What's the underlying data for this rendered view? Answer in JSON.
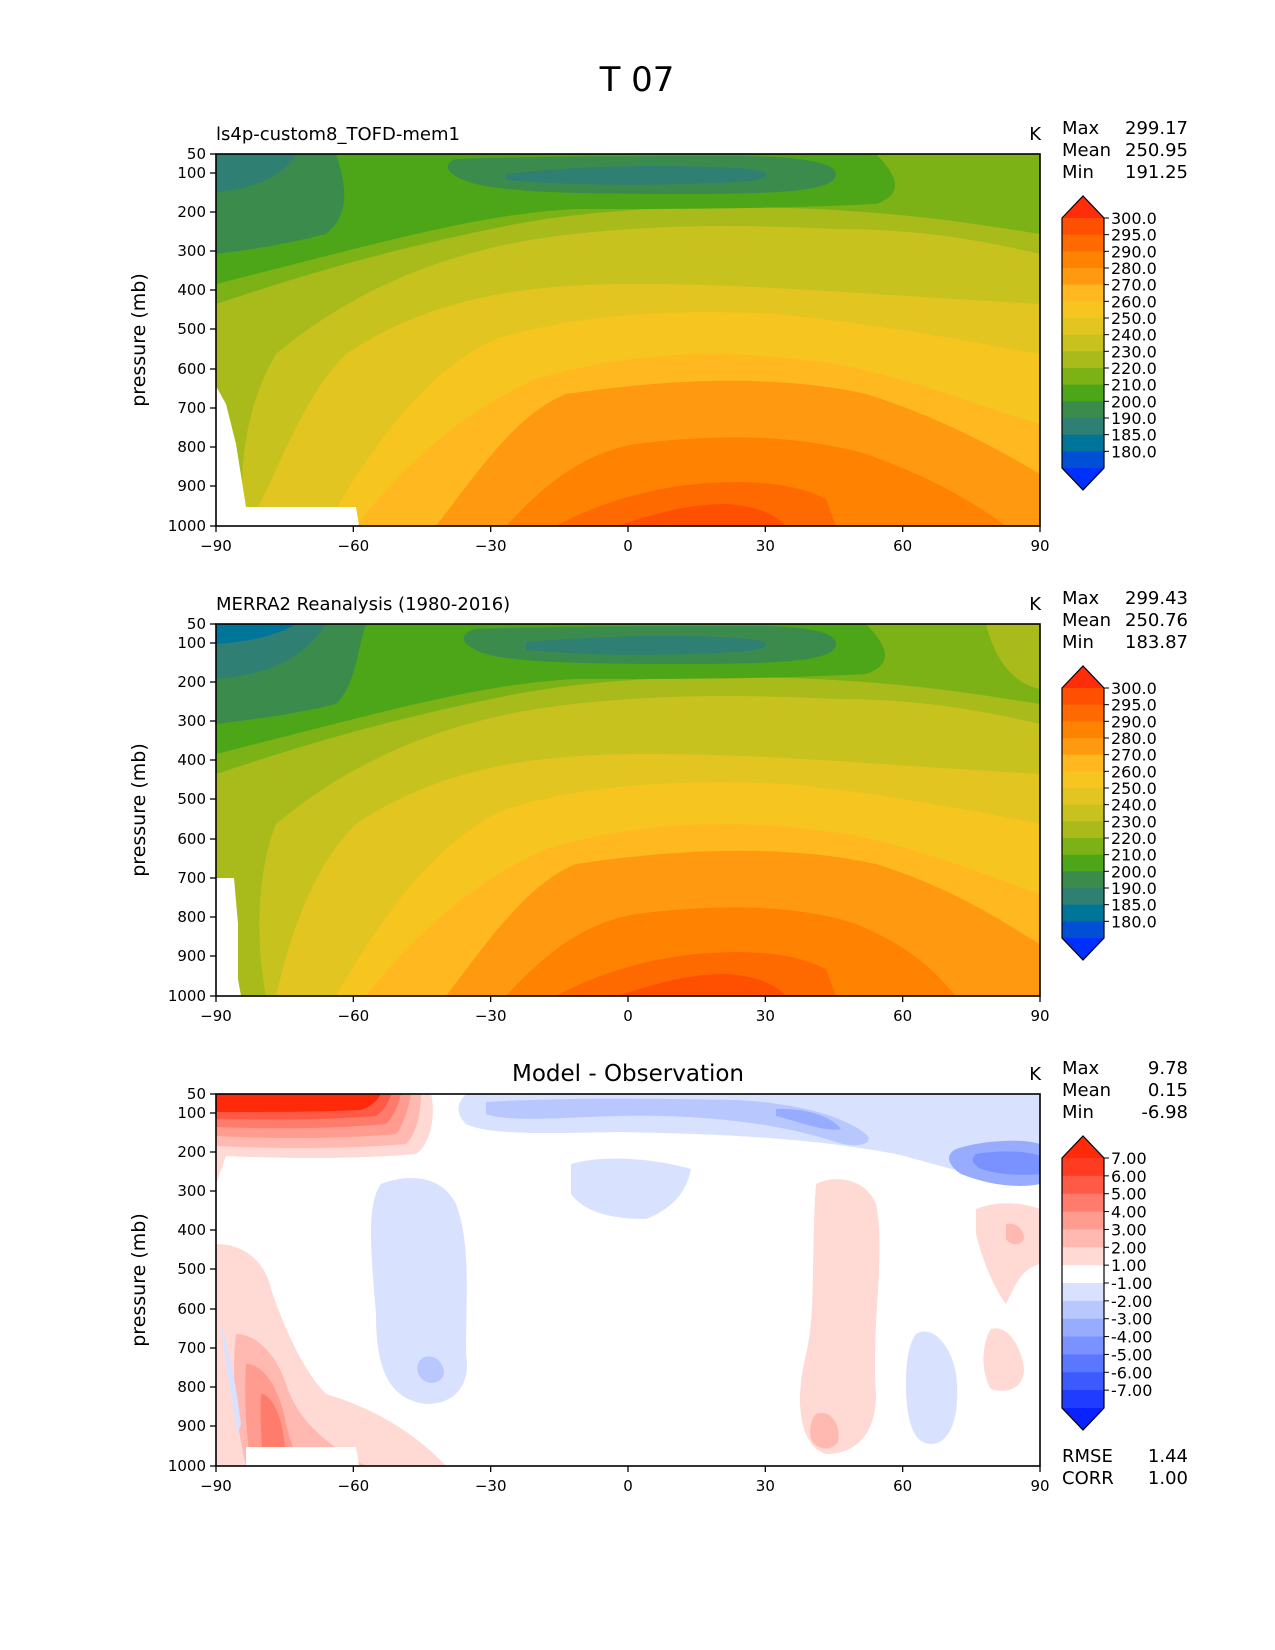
{
  "figure_title": "T 07",
  "chart_data": [
    {
      "type": "heatmap",
      "title": "ls4p-custom8_TOFD-mem1",
      "units_label": "K",
      "ylabel": "pressure (mb)",
      "xlabel": "",
      "x_ticks": [
        "−90",
        "−60",
        "−30",
        "0",
        "30",
        "60",
        "90"
      ],
      "y_ticks": [
        "50",
        "100",
        "200",
        "300",
        "400",
        "500",
        "600",
        "700",
        "800",
        "900",
        "1000"
      ],
      "xlim": [
        -90,
        90
      ],
      "ylim": [
        1000,
        50
      ],
      "stats": [
        {
          "label": "Max",
          "value": "299.17"
        },
        {
          "label": "Mean",
          "value": "250.95"
        },
        {
          "label": "Min",
          "value": "191.25"
        }
      ],
      "colorbar": {
        "labels": [
          "300.0",
          "295.0",
          "290.0",
          "280.0",
          "270.0",
          "260.0",
          "250.0",
          "240.0",
          "230.0",
          "220.0",
          "210.0",
          "200.0",
          "190.0",
          "185.0",
          "180.0"
        ],
        "colors": [
          "#ff2d0a",
          "#ff4f00",
          "#ff6a00",
          "#ff8200",
          "#ff9a10",
          "#ffb820",
          "#f7c51f",
          "#e3c522",
          "#c8c21e",
          "#a8bb1a",
          "#7db216",
          "#4ca617",
          "#3b8c4c",
          "#2f7f72",
          "#00759a",
          "#0050d6",
          "#0030ff"
        ]
      }
    },
    {
      "type": "heatmap",
      "title": "MERRA2 Reanalysis (1980-2016)",
      "units_label": "K",
      "ylabel": "pressure (mb)",
      "xlabel": "",
      "x_ticks": [
        "−90",
        "−60",
        "−30",
        "0",
        "30",
        "60",
        "90"
      ],
      "y_ticks": [
        "50",
        "100",
        "200",
        "300",
        "400",
        "500",
        "600",
        "700",
        "800",
        "900",
        "1000"
      ],
      "xlim": [
        -90,
        90
      ],
      "ylim": [
        1000,
        50
      ],
      "stats": [
        {
          "label": "Max",
          "value": "299.43"
        },
        {
          "label": "Mean",
          "value": "250.76"
        },
        {
          "label": "Min",
          "value": "183.87"
        }
      ],
      "colorbar": {
        "labels": [
          "300.0",
          "295.0",
          "290.0",
          "280.0",
          "270.0",
          "260.0",
          "250.0",
          "240.0",
          "230.0",
          "220.0",
          "210.0",
          "200.0",
          "190.0",
          "185.0",
          "180.0"
        ],
        "colors": [
          "#ff2d0a",
          "#ff4f00",
          "#ff6a00",
          "#ff8200",
          "#ff9a10",
          "#ffb820",
          "#f7c51f",
          "#e3c522",
          "#c8c21e",
          "#a8bb1a",
          "#7db216",
          "#4ca617",
          "#3b8c4c",
          "#2f7f72",
          "#00759a",
          "#0050d6",
          "#0030ff"
        ]
      }
    },
    {
      "type": "heatmap",
      "title": "Model - Observation",
      "units_label": "K",
      "ylabel": "pressure (mb)",
      "xlabel": "",
      "x_ticks": [
        "−90",
        "−60",
        "−30",
        "0",
        "30",
        "60",
        "90"
      ],
      "y_ticks": [
        "50",
        "100",
        "200",
        "300",
        "400",
        "500",
        "600",
        "700",
        "800",
        "900",
        "1000"
      ],
      "xlim": [
        -90,
        90
      ],
      "ylim": [
        1000,
        50
      ],
      "stats": [
        {
          "label": "Max",
          "value": "9.78"
        },
        {
          "label": "Mean",
          "value": "0.15"
        },
        {
          "label": "Min",
          "value": "-6.98"
        }
      ],
      "extra_stats": [
        {
          "label": "RMSE",
          "value": "1.44"
        },
        {
          "label": "CORR",
          "value": "1.00"
        }
      ],
      "colorbar": {
        "labels": [
          "7.00",
          "6.00",
          "5.00",
          "4.00",
          "3.00",
          "2.00",
          "1.00",
          "-1.00",
          "-2.00",
          "-3.00",
          "-4.00",
          "-5.00",
          "-6.00",
          "-7.00"
        ],
        "colors": [
          "#ff2a0a",
          "#ff3c22",
          "#ff5a45",
          "#ff7b6b",
          "#ff9b8f",
          "#ffb9b0",
          "#ffd9d3",
          "#ffffff",
          "#d8e2ff",
          "#b8c8ff",
          "#98acff",
          "#7a92ff",
          "#5b77ff",
          "#3c5aff",
          "#1f3cff",
          "#0a22ff"
        ]
      }
    }
  ]
}
